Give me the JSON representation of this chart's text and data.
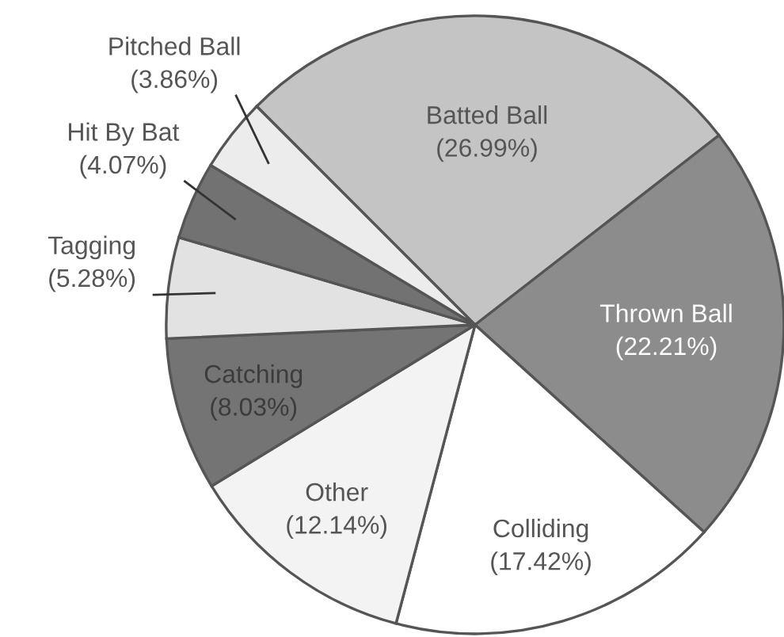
{
  "chart_data": {
    "type": "pie",
    "categories": [
      "Batted Ball",
      "Thrown Ball",
      "Colliding",
      "Other",
      "Catching",
      "Tagging",
      "Hit By Bat",
      "Pitched Ball"
    ],
    "values": [
      26.99,
      22.21,
      17.42,
      12.14,
      8.03,
      5.28,
      4.07,
      3.86
    ],
    "colors": [
      "#c4c4c4",
      "#8c8c8c",
      "#ffffff",
      "#f3f3f3",
      "#747474",
      "#e2e2e2",
      "#727272",
      "#ececec"
    ],
    "value_labels": [
      "(26.99%)",
      "(22.21%)",
      "(17.42%)",
      "(12.14%)",
      "(8.03%)",
      "(5.28%)",
      "(4.07%)",
      "(3.86%)"
    ]
  }
}
